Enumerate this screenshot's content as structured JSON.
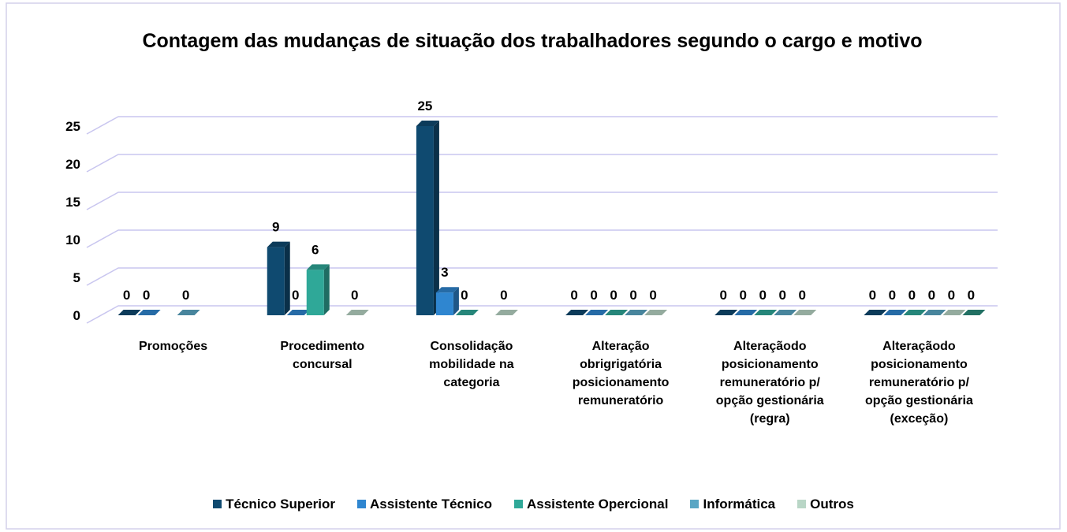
{
  "chart_data": {
    "type": "bar3d",
    "title": "Contagem das mudanças de situação dos trabalhadores segundo o cargo e motivo",
    "categories": [
      "Promoções",
      "Procedimento concursal",
      "Consolidação mobilidade na categoria",
      "Alteração obrigrigatória posicionamento remuneratório",
      "Alteraçãodo posicionamento remuneratório p/ opção gestionária (regra)",
      "Alteraçãodo posicionamento remuneratório p/ opção gestionária (exceção)"
    ],
    "series": [
      {
        "name": "Técnico Superior",
        "color": "#0f4a70",
        "values": [
          0,
          9,
          25,
          0,
          0,
          0
        ]
      },
      {
        "name": "Assistente Técnico",
        "color": "#2f86d0",
        "values": [
          0,
          0,
          3,
          0,
          0,
          0
        ]
      },
      {
        "name": "Assistente Opercional",
        "color": "#2fa898",
        "values": [
          null,
          6,
          0,
          0,
          0,
          0
        ]
      },
      {
        "name": "Informática",
        "color": "#5aa6c4",
        "values": [
          0,
          null,
          null,
          0,
          0,
          0
        ]
      },
      {
        "name": "Outros",
        "color": "#b9d6c6",
        "values": [
          null,
          0,
          0,
          0,
          0,
          0
        ]
      },
      {
        "color": "#2a8c7c",
        "values": [
          null,
          null,
          null,
          null,
          null,
          0
        ]
      }
    ],
    "ylim": [
      0,
      25
    ],
    "yticks": [
      0,
      5,
      10,
      15,
      20,
      25
    ],
    "grid": true,
    "legend": "bottom"
  }
}
